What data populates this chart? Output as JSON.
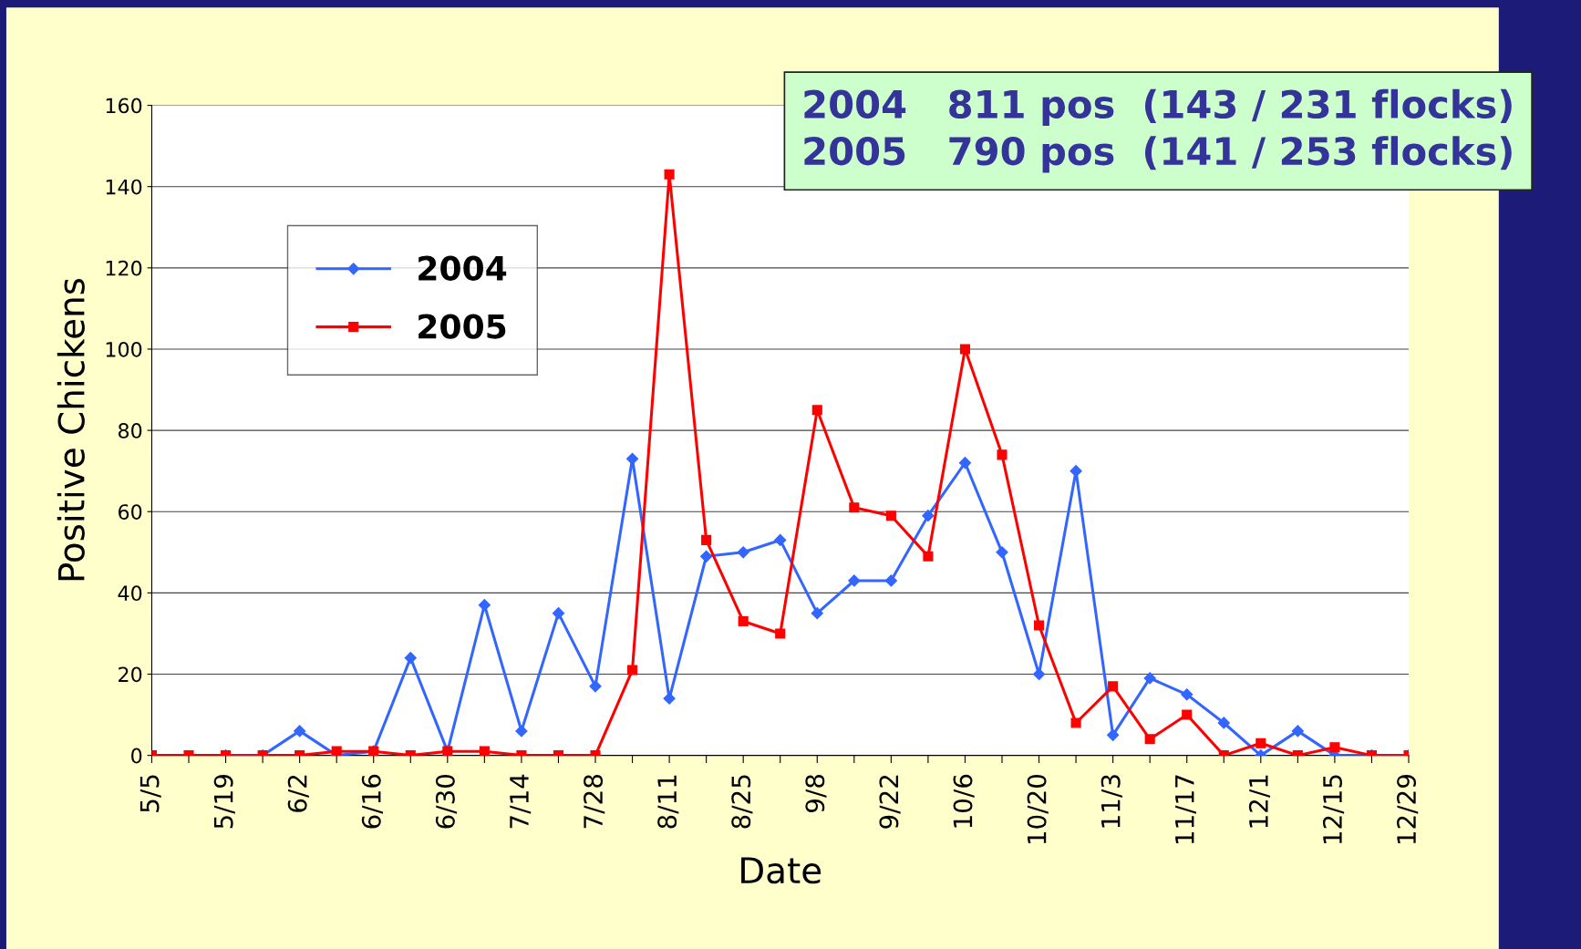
{
  "chart_data": {
    "type": "line",
    "xlabel": "Date",
    "ylabel": "Positive Chickens",
    "categories": [
      "5/5",
      null,
      "5/19",
      null,
      "6/2",
      null,
      "6/16",
      null,
      "6/30",
      null,
      "7/14",
      null,
      "7/28",
      null,
      "8/11",
      null,
      "8/25",
      null,
      "9/8",
      null,
      "9/22",
      null,
      "10/6",
      null,
      "10/20",
      null,
      "11/3",
      null,
      "11/17",
      null,
      "12/1",
      null,
      "12/15",
      null,
      "12/29"
    ],
    "series": [
      {
        "name": "2004",
        "color": "#3366ff",
        "marker": "diamond",
        "values": [
          null,
          null,
          0,
          0,
          6,
          0,
          1,
          24,
          1,
          37,
          6,
          35,
          17,
          73,
          14,
          49,
          50,
          53,
          35,
          43,
          43,
          59,
          72,
          50,
          20,
          70,
          5,
          19,
          15,
          8,
          0,
          6,
          0,
          0,
          0
        ]
      },
      {
        "name": "2005",
        "color": "#ff0000",
        "marker": "square",
        "values": [
          0,
          0,
          0,
          0,
          0,
          1,
          1,
          0,
          1,
          1,
          0,
          0,
          0,
          21,
          143,
          53,
          33,
          30,
          85,
          61,
          59,
          49,
          100,
          74,
          32,
          8,
          17,
          4,
          10,
          0,
          3,
          0,
          2,
          0,
          0
        ]
      }
    ],
    "ylim": [
      0,
      160
    ],
    "yticks": [
      0,
      20,
      40,
      60,
      80,
      100,
      120,
      140,
      160
    ],
    "grid": "y",
    "legend": "top left",
    "line_style": "solid",
    "annotations": [
      "2004   811 pos  (143 / 231 flocks)",
      "2005   790 pos  (141 / 253 flocks)"
    ]
  }
}
